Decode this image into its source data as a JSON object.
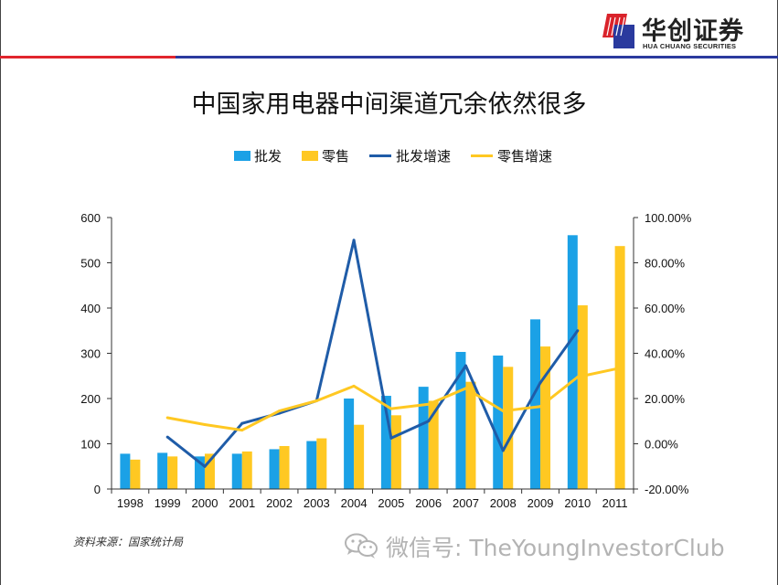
{
  "header": {
    "logo_cn": "华创证券",
    "logo_en": "HUA CHUANG SECURITIES",
    "logo_icon": "hua-chuang-logo-icon",
    "rule_colors": {
      "red": "#e1252d",
      "blue": "#2b3a9e"
    }
  },
  "title": "中国家用电器中间渠道冗余依然很多",
  "chart_data": {
    "type": "bar",
    "title": "中国家用电器中间渠道冗余依然很多",
    "categories": [
      "1998",
      "1999",
      "2000",
      "2001",
      "2002",
      "2003",
      "2004",
      "2005",
      "2006",
      "2007",
      "2008",
      "2009",
      "2010",
      "2011"
    ],
    "ylim": [
      0,
      600
    ],
    "y2lim": [
      -20,
      100
    ],
    "y_ticks": [
      "0",
      "100",
      "200",
      "300",
      "400",
      "500",
      "600"
    ],
    "y2_ticks": [
      "-20.00%",
      "0.00%",
      "20.00%",
      "40.00%",
      "60.00%",
      "80.00%",
      "100.00%"
    ],
    "legend_position": "top",
    "grid": false,
    "series": [
      {
        "name": "批发",
        "kind": "bar",
        "axis": "left",
        "color": "#1ba1e6",
        "values": [
          78,
          80,
          72,
          78,
          88,
          106,
          200,
          206,
          226,
          303,
          295,
          375,
          561,
          null
        ]
      },
      {
        "name": "零售",
        "kind": "bar",
        "axis": "left",
        "color": "#ffc822",
        "values": [
          65,
          72,
          78,
          83,
          95,
          112,
          142,
          163,
          195,
          237,
          270,
          315,
          406,
          537
        ]
      },
      {
        "name": "批发增速",
        "kind": "line",
        "axis": "right",
        "unit": "%",
        "color": "#1f5ca8",
        "values": [
          null,
          3.0,
          -10.0,
          9.0,
          13.5,
          19.0,
          90.0,
          2.5,
          10.0,
          34.5,
          -3.0,
          27.0,
          50.0,
          null
        ]
      },
      {
        "name": "零售增速",
        "kind": "line",
        "axis": "right",
        "unit": "%",
        "color": "#ffc822",
        "values": [
          null,
          11.5,
          8.5,
          6.0,
          14.5,
          19.0,
          25.5,
          15.5,
          17.5,
          24.5,
          14.5,
          16.5,
          29.5,
          33.0
        ]
      }
    ]
  },
  "footer": {
    "source": "资料来源：国家统计局",
    "watermark_icon": "wechat-icon",
    "watermark": "微信号: TheYoungInvestorClub"
  }
}
